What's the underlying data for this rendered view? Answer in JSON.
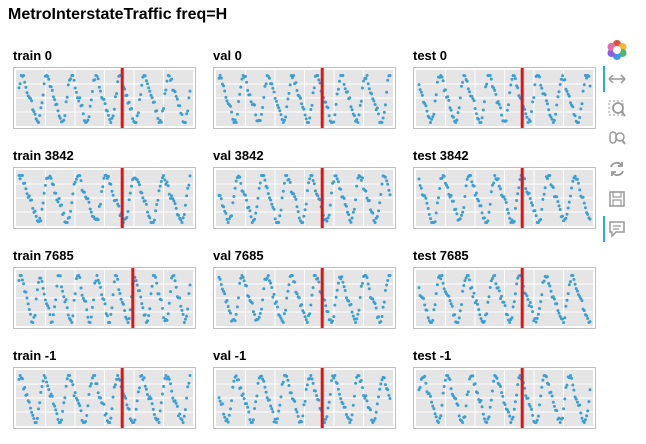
{
  "page": {
    "title": "MetroInterstateTraffic freq=H"
  },
  "colors": {
    "points": "#3a9fd6",
    "divider": "#e81010",
    "plot_bg": "#e5e5e5",
    "grid": "#ffffff",
    "toolbar_active": "#26aae1",
    "toolbar_icon": "#aaaaaa"
  },
  "toolbar": {
    "tools": [
      "bokeh-logo-icon",
      "pan-icon",
      "box-zoom-icon",
      "wheel-zoom-icon",
      "reset-icon",
      "save-icon",
      "hover-icon"
    ]
  },
  "chart_data": [
    {
      "type": "scatter",
      "title": "train 0",
      "split_fraction": 0.6,
      "cycles": 7.0,
      "phase": 0.3
    },
    {
      "type": "scatter",
      "title": "val 0",
      "split_fraction": 0.6,
      "cycles": 7.0,
      "phase": 1.1
    },
    {
      "type": "scatter",
      "title": "test 0",
      "split_fraction": 0.6,
      "cycles": 7.0,
      "phase": 2.0
    },
    {
      "type": "scatter",
      "title": "train 3842",
      "split_fraction": 0.6,
      "cycles": 6.0,
      "phase": 0.8
    },
    {
      "type": "scatter",
      "title": "val 3842",
      "split_fraction": 0.6,
      "cycles": 7.0,
      "phase": 2.6
    },
    {
      "type": "scatter",
      "title": "test 3842",
      "split_fraction": 0.6,
      "cycles": 6.5,
      "phase": 1.7
    },
    {
      "type": "scatter",
      "title": "train 7685",
      "split_fraction": 0.66,
      "cycles": 9.0,
      "phase": 0.5
    },
    {
      "type": "scatter",
      "title": "val 7685",
      "split_fraction": 0.6,
      "cycles": 7.0,
      "phase": 1.4
    },
    {
      "type": "scatter",
      "title": "test 7685",
      "split_fraction": 0.6,
      "cycles": 6.5,
      "phase": 2.3
    },
    {
      "type": "scatter",
      "title": "train -1",
      "split_fraction": 0.6,
      "cycles": 7.0,
      "phase": 0.9
    },
    {
      "type": "scatter",
      "title": "val -1",
      "split_fraction": 0.6,
      "cycles": 7.0,
      "phase": 3.0
    },
    {
      "type": "scatter",
      "title": "test -1",
      "split_fraction": 0.6,
      "cycles": 7.0,
      "phase": 0.2
    }
  ]
}
